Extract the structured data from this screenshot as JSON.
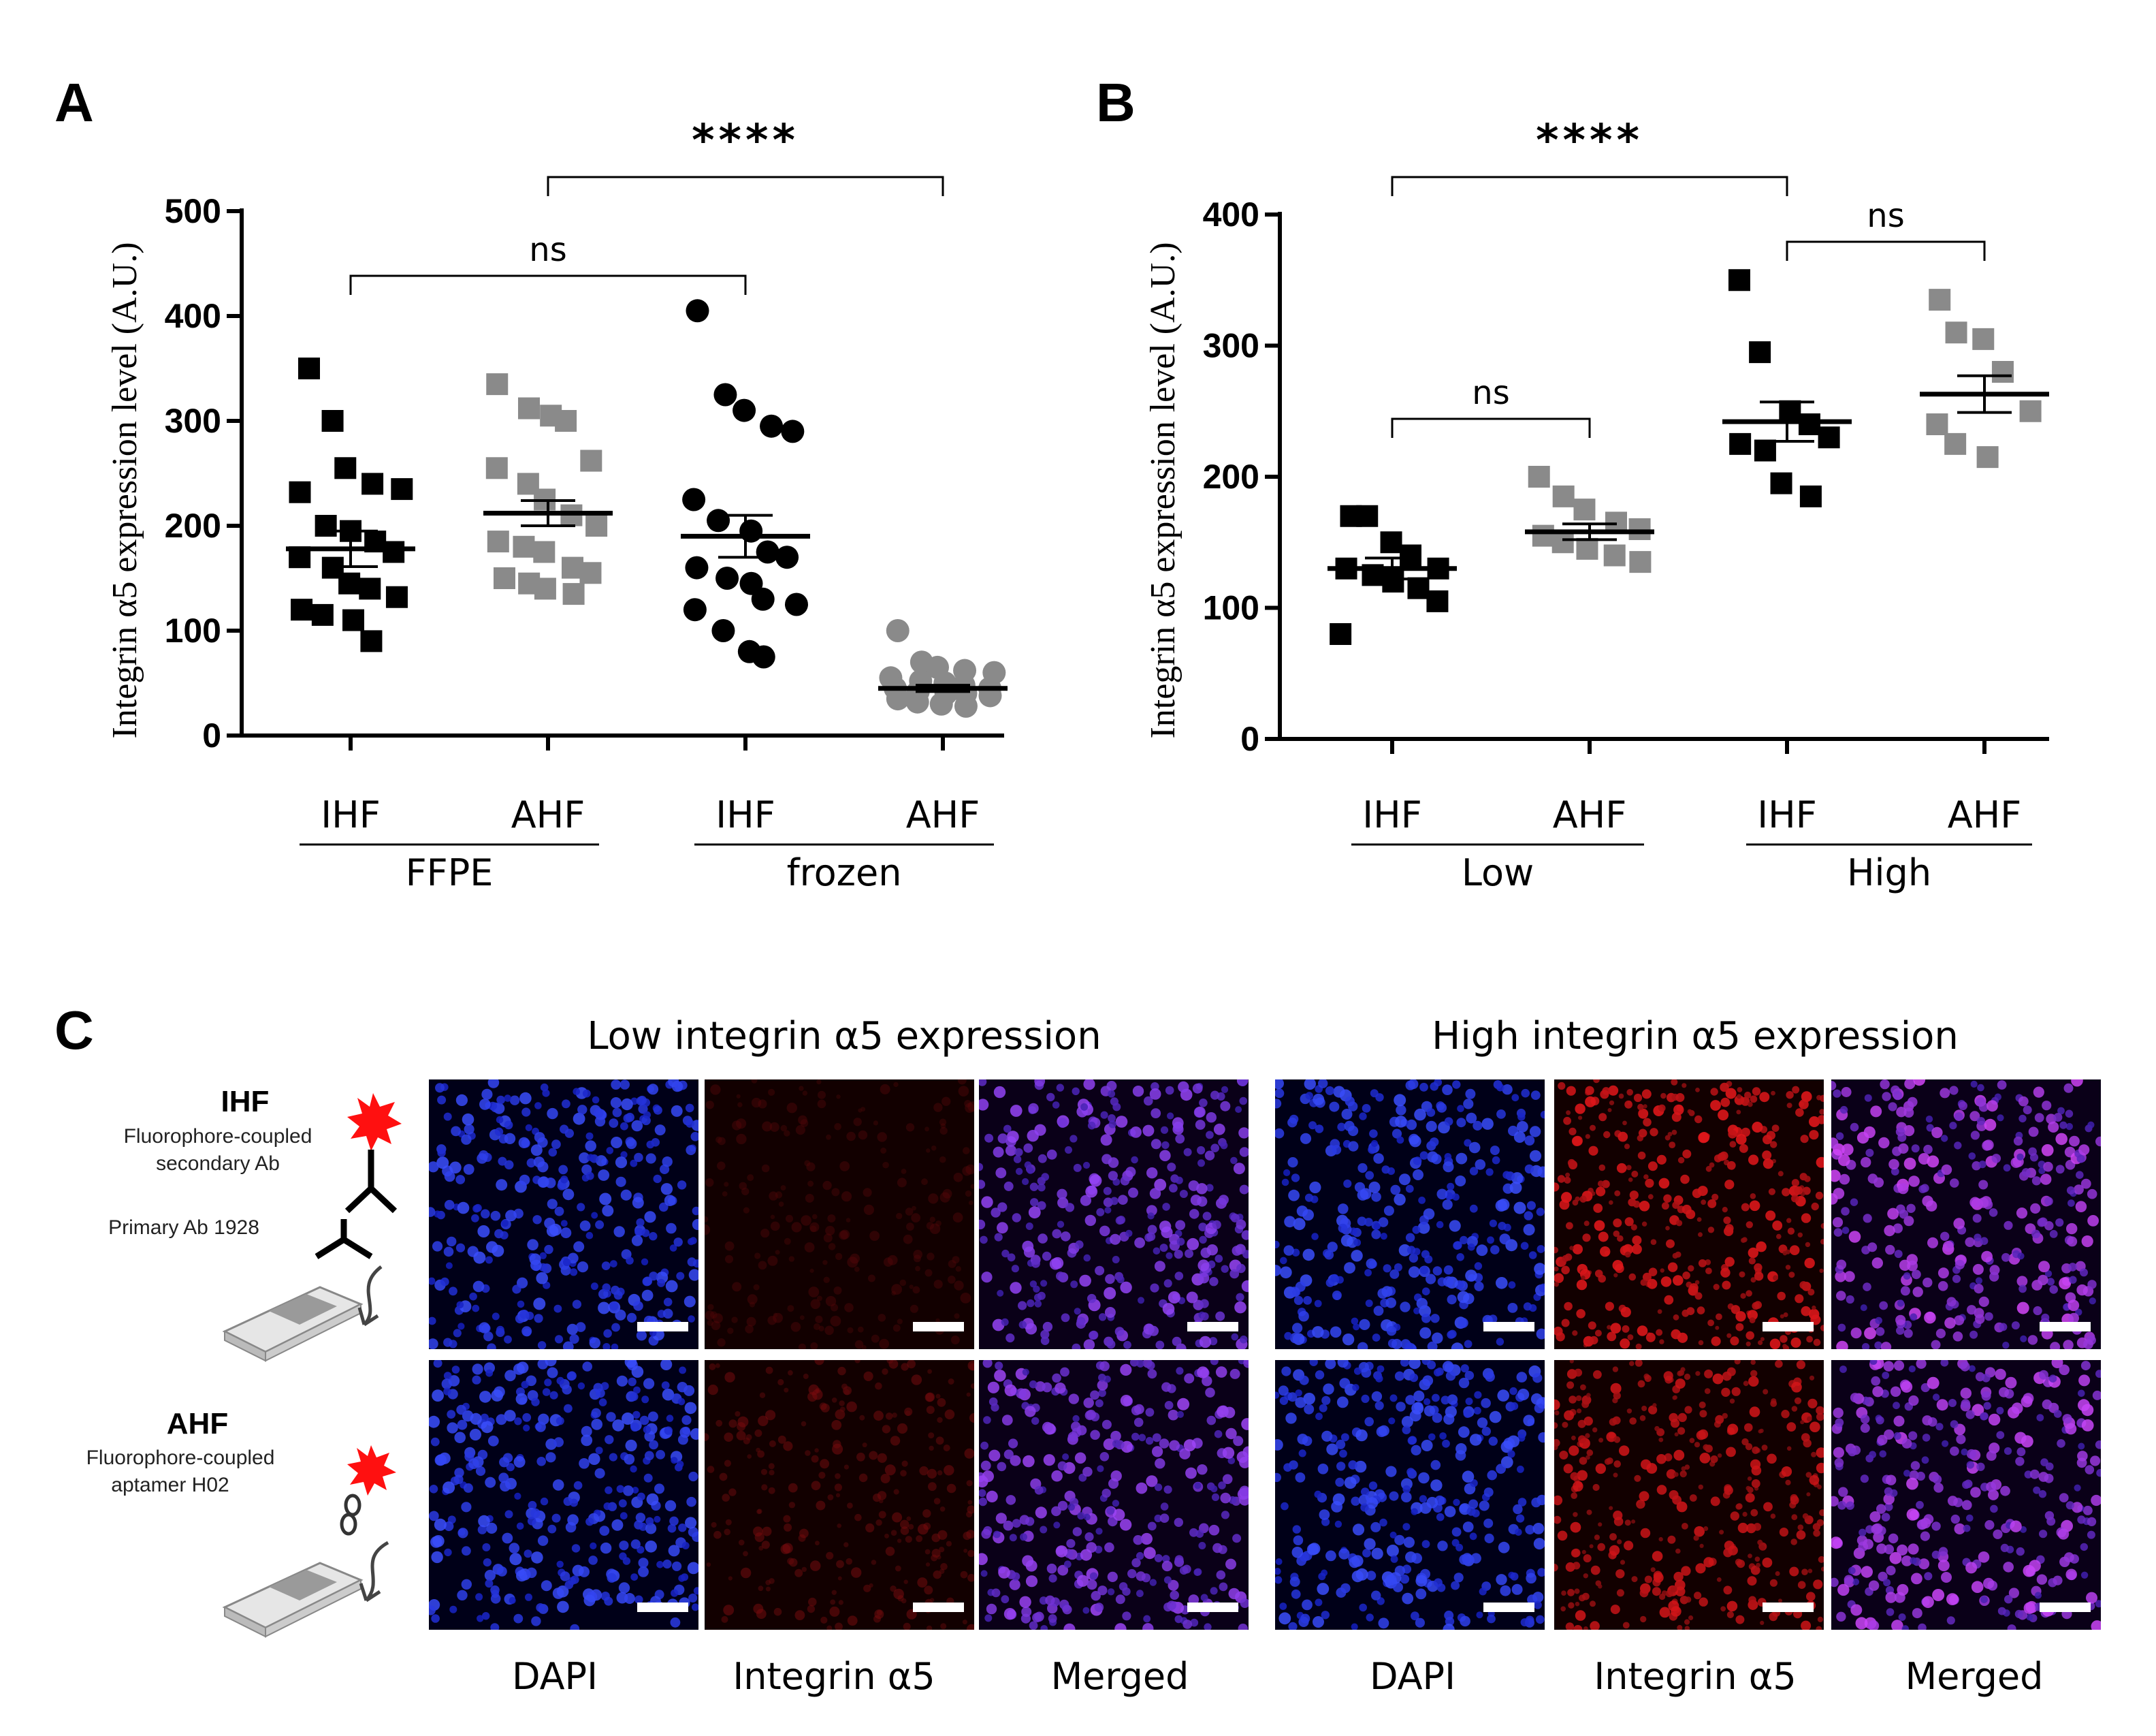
{
  "colors": {
    "black": "#000000",
    "grey": "#8a8a8a",
    "dapi": "#1a1aff",
    "integrin": "#ff2020",
    "merged": "#6a2dd8"
  },
  "panel_c": {
    "letter": "C",
    "title_low": "Low integrin α5 expression",
    "title_high": "High integrin α5 expression",
    "col_labels_low": [
      "DAPI",
      "Integrin α5",
      "Merged"
    ],
    "col_labels_high": [
      "DAPI",
      "Integrin α5",
      "Merged"
    ],
    "methods": {
      "ihf": {
        "title": "IHF",
        "line1": "Fluorophore-coupled",
        "line2": "secondary Ab",
        "line3": "Primary  Ab 1928"
      },
      "ahf": {
        "title": "AHF",
        "line1": "Fluorophore-coupled",
        "line2": "aptamer  H02"
      }
    },
    "images": {
      "row1": [
        {
          "name": "ihf-low-dapi",
          "channel": "dapi",
          "intensity": 1.0
        },
        {
          "name": "ihf-low-integrin",
          "channel": "integrin",
          "intensity": 0.18
        },
        {
          "name": "ihf-low-merged",
          "channel": "merged",
          "intensity": 0.55
        },
        {
          "name": "ihf-high-dapi",
          "channel": "dapi",
          "intensity": 1.0
        },
        {
          "name": "ihf-high-integrin",
          "channel": "integrin",
          "intensity": 0.85
        },
        {
          "name": "ihf-high-merged",
          "channel": "merged",
          "intensity": 0.9
        }
      ],
      "row2": [
        {
          "name": "ahf-low-dapi",
          "channel": "dapi",
          "intensity": 1.0
        },
        {
          "name": "ahf-low-integrin",
          "channel": "integrin",
          "intensity": 0.35
        },
        {
          "name": "ahf-low-merged",
          "channel": "merged",
          "intensity": 0.6
        },
        {
          "name": "ahf-high-dapi",
          "channel": "dapi",
          "intensity": 1.0
        },
        {
          "name": "ahf-high-integrin",
          "channel": "integrin",
          "intensity": 0.8
        },
        {
          "name": "ahf-high-merged",
          "channel": "merged",
          "intensity": 0.85
        }
      ]
    }
  },
  "chart_data": [
    {
      "panel": "A",
      "type": "scatter",
      "ylabel": "Integrin α5 expression level (A.U.)",
      "ylim": [
        0,
        500
      ],
      "yticks": [
        "0",
        "100",
        "200",
        "300",
        "400",
        "500"
      ],
      "categories": [
        "IHF",
        "AHF",
        "IHF",
        "AHF"
      ],
      "groups": [
        "FFPE",
        "frozen"
      ],
      "series": [
        {
          "name": "FFPE IHF",
          "marker": "square",
          "color": "black",
          "mean": 178,
          "sem": 17,
          "values": [
            350,
            300,
            255,
            240,
            235,
            232,
            200,
            195,
            185,
            175,
            170,
            160,
            145,
            140,
            132,
            120,
            115,
            110,
            90
          ]
        },
        {
          "name": "FFPE AHF",
          "marker": "square",
          "color": "grey",
          "mean": 212,
          "sem": 12,
          "values": [
            335,
            312,
            305,
            300,
            262,
            255,
            240,
            225,
            210,
            200,
            185,
            180,
            175,
            160,
            155,
            150,
            145,
            140,
            135
          ]
        },
        {
          "name": "frozen IHF",
          "marker": "circle",
          "color": "black",
          "mean": 190,
          "sem": 20,
          "values": [
            405,
            325,
            310,
            295,
            290,
            225,
            205,
            195,
            175,
            170,
            160,
            150,
            145,
            130,
            125,
            120,
            100,
            80,
            75
          ]
        },
        {
          "name": "frozen AHF",
          "marker": "circle",
          "color": "grey",
          "mean": 45,
          "sem": 3,
          "values": [
            100,
            70,
            65,
            62,
            60,
            55,
            52,
            50,
            48,
            45,
            45,
            42,
            40,
            40,
            38,
            35,
            32,
            30,
            28
          ]
        }
      ],
      "significance": [
        {
          "from": 0,
          "to": 2,
          "label": "ns"
        },
        {
          "from": 1,
          "to": 3,
          "label": "****"
        }
      ]
    },
    {
      "panel": "B",
      "type": "scatter",
      "ylabel": "Integrin α5 expression level (A.U.)",
      "ylim": [
        0,
        400
      ],
      "yticks": [
        "0",
        "100",
        "200",
        "300",
        "400"
      ],
      "categories": [
        "IHF",
        "AHF",
        "IHF",
        "AHF"
      ],
      "groups": [
        "Low",
        "High"
      ],
      "series": [
        {
          "name": "Low IHF",
          "marker": "square",
          "color": "black",
          "mean": 130,
          "sem": 8,
          "values": [
            170,
            170,
            150,
            140,
            130,
            130,
            125,
            120,
            115,
            105,
            80
          ]
        },
        {
          "name": "Low AHF",
          "marker": "square",
          "color": "grey",
          "mean": 158,
          "sem": 6,
          "values": [
            200,
            185,
            175,
            165,
            160,
            155,
            150,
            145,
            140,
            135
          ]
        },
        {
          "name": "High IHF",
          "marker": "square",
          "color": "black",
          "mean": 242,
          "sem": 15,
          "values": [
            350,
            295,
            250,
            240,
            230,
            225,
            220,
            195,
            185
          ]
        },
        {
          "name": "High AHF",
          "marker": "square",
          "color": "grey",
          "mean": 263,
          "sem": 14,
          "values": [
            335,
            310,
            305,
            280,
            250,
            240,
            225,
            215
          ]
        }
      ],
      "significance": [
        {
          "from": 0,
          "to": 1,
          "label": "ns"
        },
        {
          "from": 2,
          "to": 3,
          "label": "ns"
        },
        {
          "from": 0,
          "to": 2,
          "label": "****"
        }
      ]
    }
  ]
}
